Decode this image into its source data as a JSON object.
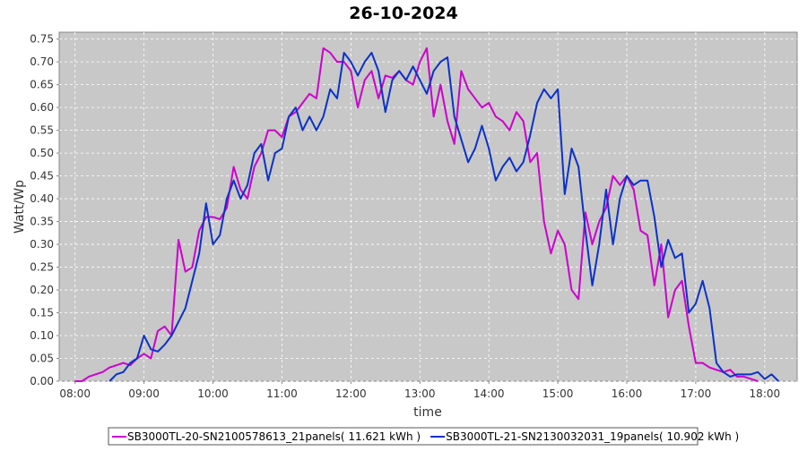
{
  "chart_data": {
    "type": "line",
    "title": "26-10-2024",
    "x_label": "time",
    "y_label": "Watt/Wp",
    "xlim": [
      7.77,
      18.47
    ],
    "ylim": [
      0,
      0.765
    ],
    "grid": true,
    "legend": "bottom",
    "xticks": [
      {
        "value": 8,
        "label": "08:00"
      },
      {
        "value": 9,
        "label": "09:00"
      },
      {
        "value": 10,
        "label": "10:00"
      },
      {
        "value": 11,
        "label": "11:00"
      },
      {
        "value": 12,
        "label": "12:00"
      },
      {
        "value": 13,
        "label": "13:00"
      },
      {
        "value": 14,
        "label": "14:00"
      },
      {
        "value": 15,
        "label": "15:00"
      },
      {
        "value": 16,
        "label": "16:00"
      },
      {
        "value": 17,
        "label": "17:00"
      },
      {
        "value": 18,
        "label": "18:00"
      }
    ],
    "yticks": [
      {
        "value": 0,
        "label": "0.00"
      },
      {
        "value": 0.05,
        "label": "0.05"
      },
      {
        "value": 0.1,
        "label": "0.10"
      },
      {
        "value": 0.15,
        "label": "0.15"
      },
      {
        "value": 0.2,
        "label": "0.20"
      },
      {
        "value": 0.25,
        "label": "0.25"
      },
      {
        "value": 0.3,
        "label": "0.30"
      },
      {
        "value": 0.35,
        "label": "0.35"
      },
      {
        "value": 0.4,
        "label": "0.40"
      },
      {
        "value": 0.45,
        "label": "0.45"
      },
      {
        "value": 0.5,
        "label": "0.50"
      },
      {
        "value": 0.55,
        "label": "0.55"
      },
      {
        "value": 0.6,
        "label": "0.60"
      },
      {
        "value": 0.65,
        "label": "0.65"
      },
      {
        "value": 0.7,
        "label": "0.70"
      },
      {
        "value": 0.75,
        "label": "0.75"
      }
    ],
    "x": [
      8.0,
      8.1,
      8.2,
      8.3,
      8.4,
      8.5,
      8.6,
      8.7,
      8.8,
      8.9,
      9.0,
      9.1,
      9.2,
      9.3,
      9.4,
      9.5,
      9.6,
      9.7,
      9.8,
      9.9,
      10.0,
      10.1,
      10.2,
      10.3,
      10.4,
      10.5,
      10.6,
      10.7,
      10.8,
      10.9,
      11.0,
      11.1,
      11.2,
      11.3,
      11.4,
      11.5,
      11.6,
      11.7,
      11.8,
      11.9,
      12.0,
      12.1,
      12.2,
      12.3,
      12.4,
      12.5,
      12.6,
      12.7,
      12.8,
      12.9,
      13.0,
      13.1,
      13.2,
      13.3,
      13.4,
      13.5,
      13.6,
      13.7,
      13.8,
      13.9,
      14.0,
      14.1,
      14.2,
      14.3,
      14.4,
      14.5,
      14.6,
      14.7,
      14.8,
      14.9,
      15.0,
      15.1,
      15.2,
      15.3,
      15.4,
      15.5,
      15.6,
      15.7,
      15.8,
      15.9,
      16.0,
      16.1,
      16.2,
      16.3,
      16.4,
      16.5,
      16.6,
      16.7,
      16.8,
      16.9,
      17.0,
      17.1,
      17.2,
      17.3,
      17.4,
      17.5,
      17.6,
      17.7,
      17.8,
      17.9,
      18.0,
      18.1,
      18.2
    ],
    "series": [
      {
        "name": "SB3000TL-20-SN2100578613_21panels( 11.621 kWh )",
        "color": "#cc00cc",
        "values": [
          0,
          0,
          0.01,
          0.015,
          0.02,
          0.03,
          0.035,
          0.04,
          0.035,
          0.05,
          0.06,
          0.05,
          0.11,
          0.12,
          0.1,
          0.31,
          0.24,
          0.25,
          0.33,
          0.36,
          0.36,
          0.355,
          0.38,
          0.47,
          0.42,
          0.4,
          0.47,
          0.5,
          0.55,
          0.55,
          0.535,
          0.58,
          0.59,
          0.61,
          0.63,
          0.62,
          0.73,
          0.72,
          0.7,
          0.7,
          0.68,
          0.6,
          0.66,
          0.68,
          0.62,
          0.67,
          0.665,
          0.68,
          0.66,
          0.65,
          0.7,
          0.73,
          0.58,
          0.65,
          0.57,
          0.52,
          0.68,
          0.64,
          0.62,
          0.6,
          0.61,
          0.58,
          0.57,
          0.55,
          0.59,
          0.57,
          0.48,
          0.5,
          0.35,
          0.28,
          0.33,
          0.3,
          0.2,
          0.18,
          0.37,
          0.3,
          0.35,
          0.38,
          0.45,
          0.43,
          0.45,
          0.42,
          0.33,
          0.32,
          0.21,
          0.3,
          0.14,
          0.2,
          0.22,
          0.12,
          0.04,
          0.04,
          0.03,
          0.025,
          0.02,
          0.025,
          0.01,
          0.01,
          0.005,
          0,
          null,
          null,
          null
        ]
      },
      {
        "name": "SB3000TL-21-SN2130032031_19panels( 10.902 kWh )",
        "color": "#0a32c8",
        "values": [
          null,
          null,
          null,
          null,
          null,
          0,
          0.015,
          0.02,
          0.04,
          0.05,
          0.1,
          0.07,
          0.065,
          0.08,
          0.1,
          0.13,
          0.16,
          0.22,
          0.28,
          0.39,
          0.3,
          0.32,
          0.4,
          0.44,
          0.4,
          0.43,
          0.5,
          0.52,
          0.44,
          0.5,
          0.51,
          0.58,
          0.6,
          0.55,
          0.58,
          0.55,
          0.58,
          0.64,
          0.62,
          0.72,
          0.7,
          0.67,
          0.7,
          0.72,
          0.68,
          0.59,
          0.66,
          0.68,
          0.66,
          0.69,
          0.66,
          0.63,
          0.68,
          0.7,
          0.71,
          0.58,
          0.53,
          0.48,
          0.51,
          0.56,
          0.51,
          0.44,
          0.47,
          0.49,
          0.46,
          0.48,
          0.54,
          0.61,
          0.64,
          0.62,
          0.64,
          0.41,
          0.51,
          0.47,
          0.33,
          0.21,
          0.3,
          0.42,
          0.3,
          0.4,
          0.45,
          0.43,
          0.44,
          0.44,
          0.36,
          0.25,
          0.31,
          0.27,
          0.28,
          0.15,
          0.17,
          0.22,
          0.16,
          0.04,
          0.02,
          0.01,
          0.015,
          0.015,
          0.015,
          0.02,
          0.005,
          0.015,
          0
        ]
      }
    ]
  }
}
